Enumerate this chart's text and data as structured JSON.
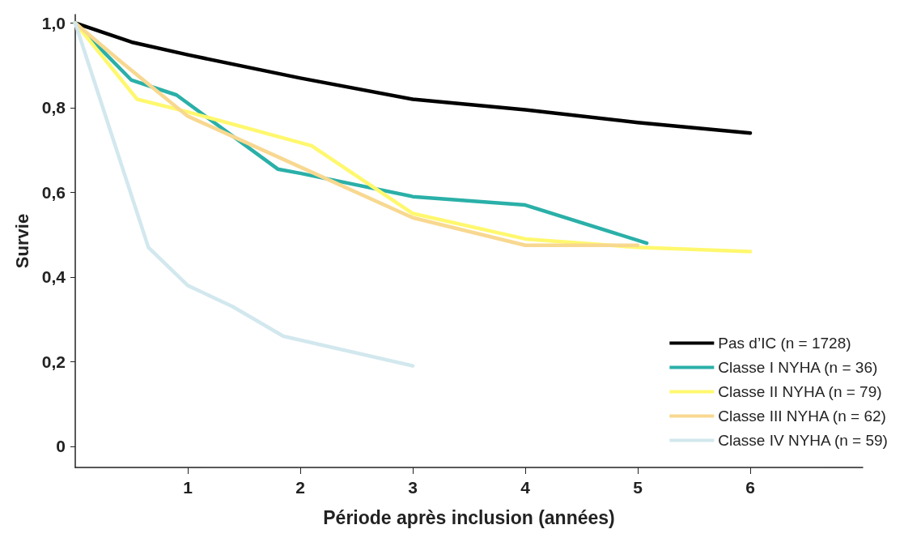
{
  "chart_data": {
    "type": "line",
    "xlabel": "Période après inclusion (années)",
    "ylabel": "Survie",
    "xlim": [
      0,
      7
    ],
    "xticks": [
      1,
      2,
      3,
      4,
      5,
      6
    ],
    "ylim": [
      -0.05,
      1.02
    ],
    "yticks": [
      {
        "value": 0,
        "label": "0"
      },
      {
        "value": 0.2,
        "label": "0,2"
      },
      {
        "value": 0.4,
        "label": "0,4"
      },
      {
        "value": 0.6,
        "label": "0,6"
      },
      {
        "value": 0.8,
        "label": "0,8"
      },
      {
        "value": 1,
        "label": "1,0"
      }
    ],
    "grid": false,
    "legend": "bottom right",
    "marker": "none",
    "line_style": "solid",
    "series": [
      {
        "name": "Pas d’IC (n = 1728)",
        "color": "#000000",
        "x": [
          0,
          0.5,
          1,
          2,
          3,
          4,
          5,
          6
        ],
        "values": [
          1.0,
          0.955,
          0.925,
          0.87,
          0.82,
          0.795,
          0.765,
          0.74
        ]
      },
      {
        "name": "Classe I NYHA (n = 36)",
        "color": "#2ab0a8",
        "x": [
          0,
          0.5,
          0.9,
          1.8,
          2,
          3,
          4,
          5.08
        ],
        "values": [
          1.0,
          0.865,
          0.83,
          0.655,
          0.645,
          0.59,
          0.57,
          0.48
        ]
      },
      {
        "name": "Classe II NYHA (n = 79)",
        "color": "#fff86e",
        "x": [
          0,
          0.55,
          1,
          2.1,
          3,
          4,
          5,
          6
        ],
        "values": [
          1.0,
          0.82,
          0.79,
          0.71,
          0.55,
          0.49,
          0.47,
          0.46
        ]
      },
      {
        "name": "Classe III NYHA (n = 62)",
        "color": "#f8d890",
        "x": [
          0,
          0.4,
          1,
          2,
          3,
          4,
          5
        ],
        "values": [
          1.0,
          0.91,
          0.78,
          0.66,
          0.54,
          0.475,
          0.475
        ]
      },
      {
        "name": "Classe IV NYHA (n = 59)",
        "color": "#d2e8ee",
        "x": [
          0,
          0.65,
          1,
          1.4,
          1.85,
          3
        ],
        "values": [
          1.0,
          0.47,
          0.38,
          0.33,
          0.26,
          0.19
        ]
      }
    ]
  }
}
